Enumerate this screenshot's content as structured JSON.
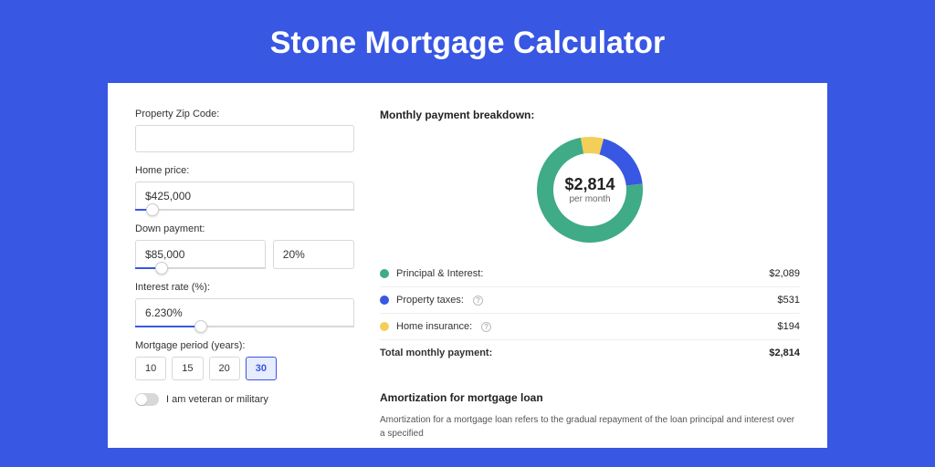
{
  "page": {
    "title": "Stone Mortgage Calculator",
    "background_color": "#3857e3"
  },
  "form": {
    "zip": {
      "label": "Property Zip Code:",
      "value": ""
    },
    "home_price": {
      "label": "Home price:",
      "value": "$425,000",
      "slider_pct": 8
    },
    "down_payment": {
      "label": "Down payment:",
      "value": "$85,000",
      "pct_value": "20%",
      "slider_pct": 20
    },
    "interest_rate": {
      "label": "Interest rate (%):",
      "value": "6.230%",
      "slider_pct": 30
    },
    "period": {
      "label": "Mortgage period (years):",
      "options": [
        "10",
        "15",
        "20",
        "30"
      ],
      "selected": "30"
    },
    "veteran": {
      "label": "I am veteran or military",
      "on": false
    }
  },
  "breakdown": {
    "title": "Monthly payment breakdown:",
    "donut": {
      "amount": "$2,814",
      "sub": "per month",
      "segments": [
        {
          "label": "Principal & Interest:",
          "value": "$2,089",
          "pct": 74,
          "color": "#3fab87"
        },
        {
          "label": "Property taxes:",
          "value": "$531",
          "pct": 19,
          "color": "#3857e3",
          "info": true
        },
        {
          "label": "Home insurance:",
          "value": "$194",
          "pct": 7,
          "color": "#f3cf5a",
          "info": true
        }
      ],
      "ring_bg": "#f1f1f1"
    },
    "total": {
      "label": "Total monthly payment:",
      "value": "$2,814"
    }
  },
  "amortization": {
    "title": "Amortization for mortgage loan",
    "text": "Amortization for a mortgage loan refers to the gradual repayment of the loan principal and interest over a specified"
  }
}
